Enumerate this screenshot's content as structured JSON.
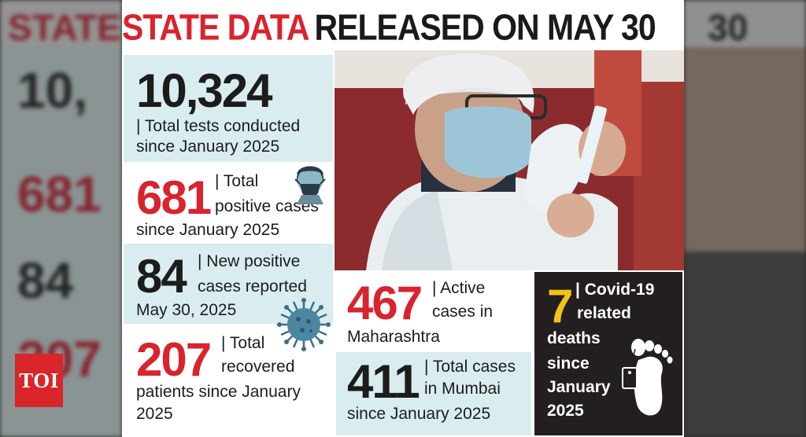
{
  "brand": {
    "logo_text": "TOI"
  },
  "headline": {
    "red_part": "STATE DATA",
    "black_part": "RELEASED ON MAY 30"
  },
  "stats": {
    "tests": {
      "number": "10,324",
      "line1": "| Total tests conducted",
      "line2": "since January 2025"
    },
    "positive": {
      "number": "681",
      "line1": "| Total",
      "line2": "positive cases",
      "line3": "since January 2025"
    },
    "new_positive": {
      "number": "84",
      "line1": "| New positive",
      "line2": "cases reported",
      "line3": "May 30, 2025"
    },
    "recovered": {
      "number": "207",
      "line1": "| Total",
      "line2": "recovered",
      "line3": "patients since January",
      "line4": "2025"
    },
    "active": {
      "number": "467",
      "line1": "| Active",
      "line2": "cases in",
      "line3": "Maharashtra"
    },
    "mumbai": {
      "number": "411",
      "line1": "| Total cases",
      "line2": "in Mumbai",
      "line3": "since January 2025"
    },
    "deaths": {
      "number": "7",
      "line1": "| Covid-19",
      "line2": "related",
      "line3": "deaths",
      "line4": "since",
      "line5": "January",
      "line6": "2025"
    }
  },
  "colors": {
    "accent_red": "#d9232e",
    "panel_blue": "#d9ecef",
    "death_panel": "#231f20",
    "death_number": "#f3c21a"
  },
  "icons": [
    "mask-face-icon",
    "virus-icon",
    "foot-tag-icon"
  ],
  "photo": "health-worker-with-vaccine-photo"
}
